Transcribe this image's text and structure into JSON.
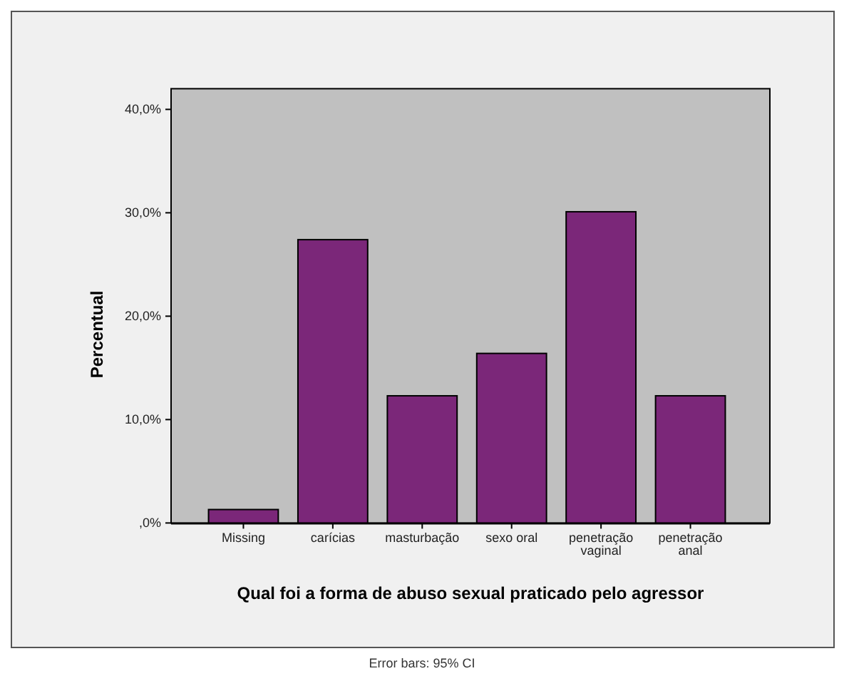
{
  "chart_data": {
    "type": "bar",
    "xlabel": "Qual foi a forma de abuso sexual praticado pelo agressor",
    "ylabel": "Percentual",
    "categories": [
      "Missing",
      "carícias",
      "masturbação",
      "sexo oral",
      "penetração vaginal",
      "penetração anal"
    ],
    "values": [
      1.3,
      27.4,
      12.3,
      16.4,
      30.1,
      12.3
    ],
    "color": "#7b2779",
    "ylim": [
      0,
      42
    ],
    "yticks": [
      {
        "value": 0,
        "label": ",0%"
      },
      {
        "value": 10,
        "label": "10,0%"
      },
      {
        "value": 20,
        "label": "20,0%"
      },
      {
        "value": 30,
        "label": "30,0%"
      },
      {
        "value": 40,
        "label": "40,0%"
      }
    ],
    "grid": false,
    "annotations": [
      "Error bars: 95% CI"
    ]
  }
}
